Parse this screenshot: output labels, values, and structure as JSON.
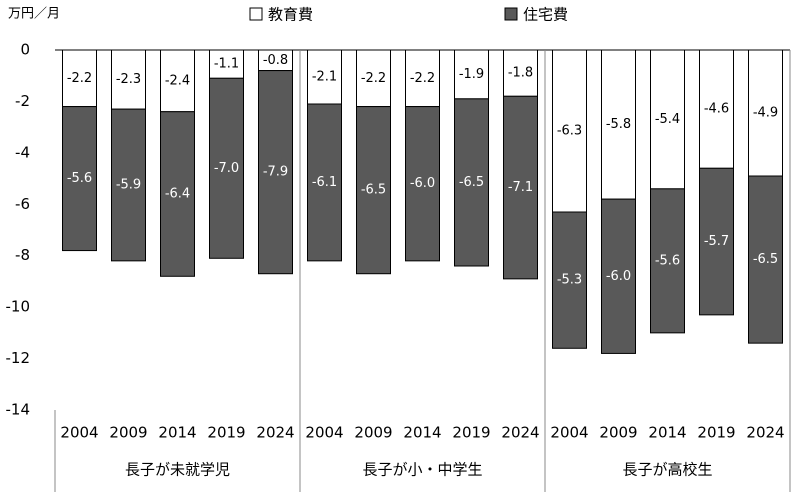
{
  "chart_data": {
    "type": "stacked-bar",
    "y_label": "万円／月",
    "categories": [
      "2004",
      "2009",
      "2014",
      "2019",
      "2024",
      "2004",
      "2009",
      "2014",
      "2019",
      "2024",
      "2004",
      "2009",
      "2014",
      "2019",
      "2024"
    ],
    "groups": [
      "長子が未就学児",
      "長子が小・中学生",
      "長子が高校生"
    ],
    "series": [
      {
        "name": "教育費",
        "color": "#ffffff",
        "values": [
          -2.2,
          -2.3,
          -2.4,
          -1.1,
          -0.8,
          -2.1,
          -2.2,
          -2.2,
          -1.9,
          -1.8,
          -6.3,
          -5.8,
          -5.4,
          -4.6,
          -4.9
        ],
        "value_labels": [
          "-2.2",
          "-2.3",
          "-2.4",
          "-1.1",
          "-0.8",
          "-2.1",
          "-2.2",
          "-2.2",
          "-1.9",
          "-1.8",
          "-6.3",
          "-5.8",
          "-5.4",
          "-4.6",
          "-4.9"
        ]
      },
      {
        "name": "住宅費",
        "color": "#595959",
        "values": [
          -5.6,
          -5.9,
          -6.4,
          -7.0,
          -7.9,
          -6.1,
          -6.5,
          -6.0,
          -6.5,
          -7.1,
          -5.3,
          -6.0,
          -5.6,
          -5.7,
          -6.5
        ],
        "value_labels": [
          "-5.6",
          "-5.9",
          "-6.4",
          "-7.0",
          "-7.9",
          "-6.1",
          "-6.5",
          "-6.0",
          "-6.5",
          "-7.1",
          "-5.3",
          "-6.0",
          "-5.6",
          "-5.7",
          "-6.5"
        ]
      }
    ],
    "ylim": [
      -14,
      0
    ],
    "yticks": [
      0,
      -2,
      -4,
      -6,
      -8,
      -10,
      -12,
      -14
    ]
  }
}
